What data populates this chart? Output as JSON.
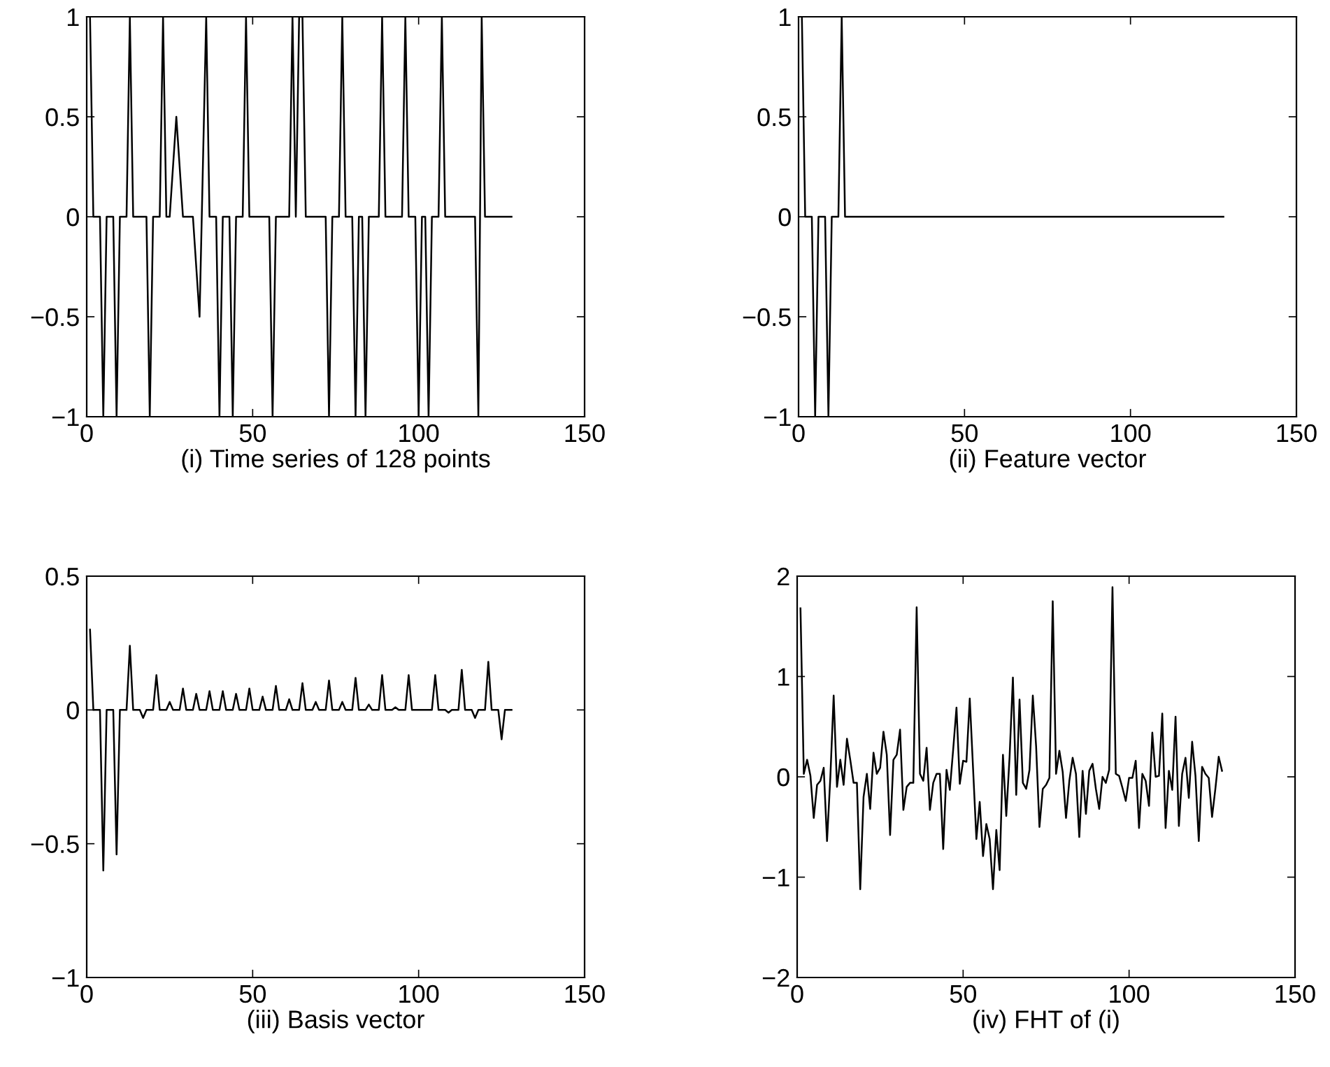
{
  "chart_data": [
    {
      "type": "line",
      "xlabel": "(i) Time series of 128 points",
      "xlim": [
        0,
        150
      ],
      "ylim": [
        -1,
        1
      ],
      "xticks": [
        0,
        50,
        100,
        150
      ],
      "yticks": [
        {
          "value": -1,
          "label": "−1"
        },
        {
          "value": -0.5,
          "label": "−0.5"
        },
        0,
        0.5,
        1
      ],
      "series": [
        {
          "color": "#000000",
          "x": [
            1,
            2,
            4,
            5,
            6,
            8,
            9,
            10,
            12,
            13,
            14,
            18,
            19,
            20,
            22,
            23,
            24,
            25,
            27,
            29,
            32,
            34,
            36,
            37,
            39,
            40,
            41,
            43,
            44,
            45,
            47,
            48,
            49,
            55,
            56,
            57,
            61,
            62,
            63,
            64,
            65,
            66,
            72,
            73,
            74,
            76,
            77,
            78,
            80,
            81,
            82,
            83,
            84,
            85,
            88,
            89,
            90,
            95,
            96,
            97,
            99,
            100,
            101,
            102,
            103,
            104,
            106,
            107,
            108,
            117,
            118,
            119,
            120,
            128
          ],
          "values": [
            1,
            0,
            0,
            -1,
            0,
            0,
            -1,
            0,
            0,
            1,
            0,
            0,
            -1,
            0,
            0,
            1,
            0,
            0,
            0.5,
            0,
            0,
            -0.5,
            1,
            0,
            0,
            -1,
            0,
            0,
            -1,
            0,
            0,
            1,
            0,
            0,
            -1,
            0,
            0,
            1,
            0,
            1,
            1,
            0,
            0,
            -1,
            0,
            0,
            1,
            0,
            0,
            -1,
            0,
            0,
            -1,
            0,
            0,
            1,
            0,
            0,
            1,
            0,
            0,
            -1,
            0,
            0,
            -1,
            0,
            0,
            1,
            0,
            0,
            -1,
            1,
            0,
            0
          ]
        }
      ]
    },
    {
      "type": "line",
      "xlabel": "(ii) Feature vector",
      "xlim": [
        0,
        150
      ],
      "ylim": [
        -1,
        1
      ],
      "xticks": [
        0,
        50,
        100,
        150
      ],
      "yticks": [
        {
          "value": -1,
          "label": "−1"
        },
        {
          "value": -0.5,
          "label": "−0.5"
        },
        0,
        0.5,
        1
      ],
      "series": [
        {
          "color": "#000000",
          "x": [
            1,
            2,
            4,
            5,
            6,
            8,
            9,
            10,
            12,
            13,
            14,
            128
          ],
          "values": [
            1,
            0,
            0,
            -1,
            0,
            0,
            -1,
            0,
            0,
            1,
            0,
            0
          ]
        }
      ]
    },
    {
      "type": "line",
      "xlabel": "(iii) Basis vector",
      "xlim": [
        0,
        150
      ],
      "ylim": [
        -1,
        0.5
      ],
      "xticks": [
        0,
        50,
        100,
        150
      ],
      "yticks": [
        {
          "value": -1,
          "label": "−1"
        },
        {
          "value": -0.5,
          "label": "−0.5"
        },
        0,
        0.5
      ],
      "series": [
        {
          "color": "#000000",
          "x": [
            1,
            2,
            4,
            5,
            6,
            8,
            9,
            10,
            12,
            13,
            14,
            16,
            17,
            18,
            20,
            21,
            22,
            24,
            25,
            26,
            28,
            29,
            30,
            32,
            33,
            34,
            36,
            37,
            38,
            40,
            41,
            42,
            44,
            45,
            46,
            48,
            49,
            50,
            52,
            53,
            54,
            56,
            57,
            58,
            60,
            61,
            62,
            64,
            65,
            66,
            68,
            69,
            70,
            72,
            73,
            74,
            76,
            77,
            78,
            80,
            81,
            82,
            84,
            85,
            86,
            88,
            89,
            90,
            92,
            93,
            94,
            96,
            97,
            98,
            100,
            101,
            102,
            104,
            105,
            106,
            108,
            109,
            110,
            112,
            113,
            114,
            116,
            117,
            118,
            120,
            121,
            122,
            124,
            125,
            126,
            128
          ],
          "values": [
            0.3,
            0,
            0,
            -0.6,
            0,
            0,
            -0.54,
            0,
            0,
            0.24,
            0,
            0,
            -0.03,
            0,
            0,
            0.13,
            0,
            0,
            0.03,
            0,
            0,
            0.08,
            0,
            0,
            0.06,
            0,
            0,
            0.07,
            0,
            0,
            0.07,
            0,
            0,
            0.06,
            0,
            0,
            0.08,
            0,
            0,
            0.05,
            0,
            0,
            0.09,
            0,
            0,
            0.04,
            0,
            0,
            0.1,
            0,
            0,
            0.03,
            0,
            0,
            0.11,
            0,
            0,
            0.03,
            0,
            0,
            0.12,
            0,
            0,
            0.02,
            0,
            0,
            0.13,
            0,
            0,
            0.01,
            0,
            0,
            0.13,
            0,
            0,
            0,
            0,
            0,
            0.13,
            0,
            0,
            -0.01,
            0,
            0,
            0.15,
            0,
            0,
            -0.03,
            0,
            0,
            0.18,
            0,
            0,
            -0.11,
            0,
            0
          ]
        }
      ]
    },
    {
      "type": "line",
      "xlabel": "(iv) FHT of (i)",
      "xlim": [
        0,
        150
      ],
      "ylim": [
        -2,
        2
      ],
      "xticks": [
        0,
        50,
        100,
        150
      ],
      "yticks": [
        {
          "value": -2,
          "label": "−2"
        },
        {
          "value": -1,
          "label": "−1"
        },
        0,
        1,
        2
      ],
      "series": [
        {
          "color": "#000000",
          "x": [
            1,
            2,
            3,
            4,
            5,
            6,
            7,
            8,
            9,
            10,
            11,
            12,
            13,
            14,
            15,
            16,
            17,
            18,
            19,
            20,
            21,
            22,
            23,
            24,
            25,
            26,
            27,
            28,
            29,
            30,
            31,
            32,
            33,
            34,
            35,
            36,
            37,
            38,
            39,
            40,
            41,
            42,
            43,
            44,
            45,
            46,
            47,
            48,
            49,
            50,
            51,
            52,
            53,
            54,
            55,
            56,
            57,
            58,
            59,
            60,
            61,
            62,
            63,
            64,
            65,
            66,
            67,
            68,
            69,
            70,
            71,
            72,
            73,
            74,
            75,
            76,
            77,
            78,
            79,
            80,
            81,
            82,
            83,
            84,
            85,
            86,
            87,
            88,
            89,
            90,
            91,
            92,
            93,
            94,
            95,
            96,
            97,
            98,
            99,
            100,
            101,
            102,
            103,
            104,
            105,
            106,
            107,
            108,
            109,
            110,
            111,
            112,
            113,
            114,
            115,
            116,
            117,
            118,
            119,
            120,
            121,
            122,
            123,
            124,
            125,
            126,
            127,
            128
          ],
          "values": [
            1.68,
            0.03,
            0.17,
            0.01,
            -0.41,
            -0.08,
            -0.04,
            0.09,
            -0.64,
            0.0,
            0.81,
            -0.1,
            0.17,
            -0.08,
            0.38,
            0.17,
            -0.06,
            -0.06,
            -1.12,
            -0.2,
            0.03,
            -0.32,
            0.24,
            0.03,
            0.09,
            0.45,
            0.22,
            -0.58,
            0.17,
            0.22,
            0.47,
            -0.33,
            -0.1,
            -0.06,
            -0.06,
            1.69,
            0.03,
            -0.04,
            0.29,
            -0.33,
            -0.06,
            0.03,
            0.03,
            -0.72,
            0.07,
            -0.13,
            0.27,
            0.69,
            -0.07,
            0.16,
            0.15,
            0.78,
            0.08,
            -0.62,
            -0.25,
            -0.79,
            -0.47,
            -0.62,
            -1.12,
            -0.53,
            -0.93,
            0.22,
            -0.39,
            0.2,
            0.99,
            -0.18,
            0.77,
            -0.06,
            -0.12,
            0.07,
            0.81,
            0.3,
            -0.5,
            -0.12,
            -0.08,
            -0.01,
            1.75,
            0.03,
            0.26,
            0.05,
            -0.41,
            -0.04,
            0.19,
            0.03,
            -0.6,
            0.06,
            -0.37,
            0.06,
            0.13,
            -0.12,
            -0.32,
            0,
            -0.06,
            0.07,
            1.89,
            0.03,
            0.01,
            -0.11,
            -0.24,
            -0.01,
            -0.01,
            0.16,
            -0.51,
            0.03,
            -0.04,
            -0.29,
            0.44,
            0,
            0.01,
            0.63,
            -0.51,
            0.06,
            -0.13,
            0.6,
            -0.49,
            0.03,
            0.19,
            -0.21,
            0.35,
            0.01,
            -0.64,
            0.1,
            0.03,
            -0.01,
            -0.4,
            -0.12,
            0.2,
            0.06
          ]
        }
      ]
    }
  ]
}
